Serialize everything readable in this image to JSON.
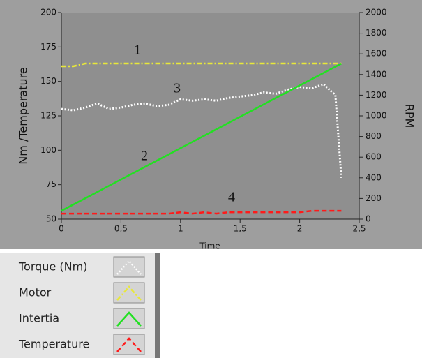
{
  "chart_data": {
    "type": "line",
    "y_label": "Nm  /Temperature",
    "y2_label": "RPM",
    "x_label": "Time",
    "x": [
      0,
      0.1,
      0.2,
      0.3,
      0.4,
      0.5,
      0.6,
      0.7,
      0.8,
      0.9,
      1.0,
      1.1,
      1.2,
      1.3,
      1.4,
      1.5,
      1.6,
      1.7,
      1.8,
      1.9,
      2.0,
      2.1,
      2.2,
      2.3,
      2.35
    ],
    "series": [
      {
        "name": "Torque (Nm)",
        "color": "#ffffff",
        "style": "dotted",
        "values": [
          130,
          129,
          131,
          134,
          130,
          131,
          133,
          134,
          132,
          133,
          137,
          136,
          137,
          136,
          138,
          139,
          140,
          142,
          141,
          144,
          146,
          145,
          148,
          140,
          80
        ]
      },
      {
        "name": "Motor",
        "color": "#e8e83a",
        "style": "dashdot",
        "values": [
          161,
          161,
          163,
          163,
          163,
          163,
          163,
          163,
          163,
          163,
          163,
          163,
          163,
          163,
          163,
          163,
          163,
          163,
          163,
          163,
          163,
          163,
          163,
          163,
          163
        ]
      },
      {
        "name": "Intertia",
        "color": "#22e022",
        "style": "solid",
        "axis": "y2",
        "values": [
          80,
          141,
          201,
          262,
          323,
          384,
          444,
          505,
          566,
          626,
          687,
          748,
          808,
          869,
          930,
          991,
          1051,
          1112,
          1173,
          1233,
          1294,
          1355,
          1415,
          1476,
          1506
        ]
      },
      {
        "name": "Temperature",
        "color": "#ff1a1a",
        "style": "dashed",
        "values": [
          54,
          54,
          54,
          54,
          54,
          54,
          54,
          54,
          54,
          54,
          55,
          54,
          55,
          54,
          55,
          55,
          55,
          55,
          55,
          55,
          55,
          56,
          56,
          56,
          56
        ]
      }
    ],
    "annotations": [
      "1",
      "2",
      "3",
      "4"
    ],
    "xlim": [
      0,
      2.5
    ],
    "xticks": [
      0,
      {
        "value": 0.5,
        "label": "0,5"
      },
      1,
      {
        "value": 1.5,
        "label": "1,5"
      },
      2,
      {
        "value": 2.5,
        "label": "2,5"
      }
    ],
    "ylim": [
      50,
      200
    ],
    "yticks": [
      50,
      75,
      100,
      125,
      150,
      175,
      200
    ],
    "y2lim": [
      0,
      2000
    ],
    "y2ticks": [
      0,
      200,
      400,
      600,
      800,
      1000,
      1200,
      1400,
      1600,
      1800,
      2000
    ]
  }
}
